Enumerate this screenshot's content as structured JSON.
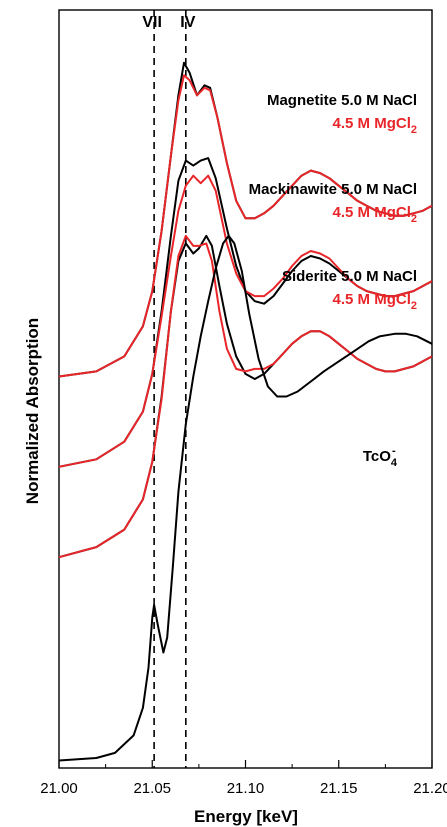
{
  "chart_data": {
    "type": "line",
    "xlabel": "Energy [keV]",
    "ylabel": "Normalized Absorption",
    "xlim": [
      21.0,
      21.2
    ],
    "x_ticks": [
      "21.00",
      "21.05",
      "21.10",
      "21.15",
      "21.20"
    ],
    "y_ticks_shown": false,
    "grid": false,
    "reference_lines": [
      {
        "label": "VII",
        "x": 21.051
      },
      {
        "label": "IV",
        "x": 21.068
      }
    ],
    "colors": {
      "nacl": "#000000",
      "mgcl2": "#e8262a"
    },
    "series": [
      {
        "sample": "Magnetite",
        "labels": {
          "nacl": "Magnetite 5.0 M NaCl",
          "mgcl2_main": "4.5 M MgCl",
          "mgcl2_sub": "2"
        },
        "nacl": [
          [
            21.0,
            1.54
          ],
          [
            21.02,
            1.56
          ],
          [
            21.035,
            1.62
          ],
          [
            21.045,
            1.74
          ],
          [
            21.05,
            1.88
          ],
          [
            21.055,
            2.12
          ],
          [
            21.06,
            2.42
          ],
          [
            21.064,
            2.66
          ],
          [
            21.067,
            2.79
          ],
          [
            21.07,
            2.75
          ],
          [
            21.074,
            2.66
          ],
          [
            21.078,
            2.7
          ],
          [
            21.081,
            2.69
          ],
          [
            21.085,
            2.57
          ],
          [
            21.09,
            2.39
          ],
          [
            21.095,
            2.24
          ],
          [
            21.1,
            2.17
          ],
          [
            21.105,
            2.17
          ],
          [
            21.11,
            2.19
          ],
          [
            21.115,
            2.22
          ],
          [
            21.12,
            2.26
          ],
          [
            21.125,
            2.3
          ],
          [
            21.13,
            2.34
          ],
          [
            21.135,
            2.36
          ],
          [
            21.14,
            2.35
          ],
          [
            21.145,
            2.33
          ],
          [
            21.15,
            2.3
          ],
          [
            21.155,
            2.27
          ],
          [
            21.16,
            2.24
          ],
          [
            21.165,
            2.22
          ],
          [
            21.17,
            2.2
          ],
          [
            21.175,
            2.19
          ],
          [
            21.18,
            2.18
          ],
          [
            21.185,
            2.18
          ],
          [
            21.19,
            2.19
          ],
          [
            21.195,
            2.2
          ],
          [
            21.2,
            2.22
          ]
        ],
        "mgcl2": [
          [
            21.0,
            1.54
          ],
          [
            21.02,
            1.56
          ],
          [
            21.035,
            1.62
          ],
          [
            21.045,
            1.74
          ],
          [
            21.05,
            1.88
          ],
          [
            21.055,
            2.12
          ],
          [
            21.06,
            2.42
          ],
          [
            21.064,
            2.64
          ],
          [
            21.067,
            2.74
          ],
          [
            21.07,
            2.72
          ],
          [
            21.074,
            2.66
          ],
          [
            21.078,
            2.69
          ],
          [
            21.081,
            2.68
          ],
          [
            21.085,
            2.57
          ],
          [
            21.09,
            2.39
          ],
          [
            21.095,
            2.24
          ],
          [
            21.1,
            2.17
          ],
          [
            21.105,
            2.17
          ],
          [
            21.11,
            2.19
          ],
          [
            21.115,
            2.22
          ],
          [
            21.12,
            2.26
          ],
          [
            21.125,
            2.3
          ],
          [
            21.13,
            2.34
          ],
          [
            21.135,
            2.36
          ],
          [
            21.14,
            2.35
          ],
          [
            21.145,
            2.33
          ],
          [
            21.15,
            2.3
          ],
          [
            21.155,
            2.27
          ],
          [
            21.16,
            2.24
          ],
          [
            21.165,
            2.22
          ],
          [
            21.17,
            2.2
          ],
          [
            21.175,
            2.19
          ],
          [
            21.18,
            2.18
          ],
          [
            21.185,
            2.18
          ],
          [
            21.19,
            2.19
          ],
          [
            21.195,
            2.2
          ],
          [
            21.2,
            2.22
          ]
        ]
      },
      {
        "sample": "Mackinawite",
        "labels": {
          "nacl": "Mackinawite 5.0 M NaCl",
          "mgcl2_main": "4.5 M MgCl",
          "mgcl2_sub": "2"
        },
        "nacl": [
          [
            21.0,
            1.18
          ],
          [
            21.02,
            1.21
          ],
          [
            21.035,
            1.28
          ],
          [
            21.045,
            1.4
          ],
          [
            21.05,
            1.55
          ],
          [
            21.055,
            1.8
          ],
          [
            21.06,
            2.1
          ],
          [
            21.064,
            2.32
          ],
          [
            21.068,
            2.4
          ],
          [
            21.072,
            2.38
          ],
          [
            21.076,
            2.4
          ],
          [
            21.08,
            2.41
          ],
          [
            21.084,
            2.33
          ],
          [
            21.09,
            2.13
          ],
          [
            21.095,
            1.98
          ],
          [
            21.1,
            1.88
          ],
          [
            21.105,
            1.84
          ],
          [
            21.11,
            1.83
          ],
          [
            21.115,
            1.86
          ],
          [
            21.12,
            1.91
          ],
          [
            21.125,
            1.96
          ],
          [
            21.13,
            2.0
          ],
          [
            21.135,
            2.02
          ],
          [
            21.14,
            2.01
          ],
          [
            21.145,
            1.99
          ],
          [
            21.15,
            1.96
          ],
          [
            21.155,
            1.93
          ],
          [
            21.16,
            1.9
          ],
          [
            21.165,
            1.88
          ],
          [
            21.17,
            1.87
          ],
          [
            21.175,
            1.86
          ],
          [
            21.18,
            1.86
          ],
          [
            21.185,
            1.87
          ],
          [
            21.19,
            1.88
          ],
          [
            21.195,
            1.9
          ],
          [
            21.2,
            1.92
          ]
        ],
        "mgcl2": [
          [
            21.0,
            1.18
          ],
          [
            21.02,
            1.21
          ],
          [
            21.035,
            1.28
          ],
          [
            21.045,
            1.4
          ],
          [
            21.05,
            1.55
          ],
          [
            21.055,
            1.78
          ],
          [
            21.06,
            2.02
          ],
          [
            21.064,
            2.2
          ],
          [
            21.068,
            2.3
          ],
          [
            21.072,
            2.34
          ],
          [
            21.076,
            2.31
          ],
          [
            21.08,
            2.34
          ],
          [
            21.084,
            2.28
          ],
          [
            21.09,
            2.07
          ],
          [
            21.095,
            1.95
          ],
          [
            21.1,
            1.88
          ],
          [
            21.105,
            1.86
          ],
          [
            21.11,
            1.86
          ],
          [
            21.115,
            1.89
          ],
          [
            21.12,
            1.93
          ],
          [
            21.125,
            1.98
          ],
          [
            21.13,
            2.02
          ],
          [
            21.135,
            2.04
          ],
          [
            21.14,
            2.03
          ],
          [
            21.145,
            2.01
          ],
          [
            21.15,
            1.97
          ],
          [
            21.155,
            1.93
          ],
          [
            21.16,
            1.9
          ],
          [
            21.165,
            1.88
          ],
          [
            21.17,
            1.87
          ],
          [
            21.175,
            1.86
          ],
          [
            21.18,
            1.86
          ],
          [
            21.185,
            1.87
          ],
          [
            21.19,
            1.88
          ],
          [
            21.195,
            1.9
          ],
          [
            21.2,
            1.92
          ]
        ]
      },
      {
        "sample": "Siderite",
        "labels": {
          "nacl": "Siderite 5.0 M NaCl",
          "mgcl2_main": "4.5 M MgCl",
          "mgcl2_sub": "2"
        },
        "nacl": [
          [
            21.0,
            0.82
          ],
          [
            21.02,
            0.86
          ],
          [
            21.035,
            0.93
          ],
          [
            21.045,
            1.05
          ],
          [
            21.05,
            1.2
          ],
          [
            21.055,
            1.46
          ],
          [
            21.06,
            1.8
          ],
          [
            21.064,
            2.0
          ],
          [
            21.068,
            2.07
          ],
          [
            21.072,
            2.03
          ],
          [
            21.075,
            2.05
          ],
          [
            21.079,
            2.1
          ],
          [
            21.082,
            2.06
          ],
          [
            21.086,
            1.9
          ],
          [
            21.09,
            1.75
          ],
          [
            21.095,
            1.62
          ],
          [
            21.1,
            1.55
          ],
          [
            21.105,
            1.53
          ],
          [
            21.11,
            1.55
          ],
          [
            21.115,
            1.59
          ],
          [
            21.12,
            1.63
          ],
          [
            21.125,
            1.67
          ],
          [
            21.13,
            1.7
          ],
          [
            21.135,
            1.72
          ],
          [
            21.14,
            1.72
          ],
          [
            21.145,
            1.7
          ],
          [
            21.15,
            1.67
          ],
          [
            21.155,
            1.64
          ],
          [
            21.16,
            1.61
          ],
          [
            21.165,
            1.59
          ],
          [
            21.17,
            1.57
          ],
          [
            21.175,
            1.56
          ],
          [
            21.18,
            1.56
          ],
          [
            21.185,
            1.57
          ],
          [
            21.19,
            1.58
          ],
          [
            21.195,
            1.6
          ],
          [
            21.2,
            1.62
          ]
        ],
        "mgcl2": [
          [
            21.0,
            0.82
          ],
          [
            21.02,
            0.86
          ],
          [
            21.035,
            0.93
          ],
          [
            21.045,
            1.05
          ],
          [
            21.05,
            1.2
          ],
          [
            21.055,
            1.45
          ],
          [
            21.06,
            1.8
          ],
          [
            21.064,
            2.02
          ],
          [
            21.068,
            2.1
          ],
          [
            21.072,
            2.06
          ],
          [
            21.075,
            2.06
          ],
          [
            21.079,
            2.07
          ],
          [
            21.082,
            2.0
          ],
          [
            21.086,
            1.8
          ],
          [
            21.09,
            1.65
          ],
          [
            21.095,
            1.57
          ],
          [
            21.1,
            1.56
          ],
          [
            21.105,
            1.57
          ],
          [
            21.11,
            1.57
          ],
          [
            21.115,
            1.59
          ],
          [
            21.12,
            1.63
          ],
          [
            21.125,
            1.67
          ],
          [
            21.13,
            1.7
          ],
          [
            21.135,
            1.72
          ],
          [
            21.14,
            1.72
          ],
          [
            21.145,
            1.7
          ],
          [
            21.15,
            1.67
          ],
          [
            21.155,
            1.64
          ],
          [
            21.16,
            1.61
          ],
          [
            21.165,
            1.59
          ],
          [
            21.17,
            1.57
          ],
          [
            21.175,
            1.56
          ],
          [
            21.18,
            1.56
          ],
          [
            21.185,
            1.57
          ],
          [
            21.19,
            1.58
          ],
          [
            21.195,
            1.6
          ],
          [
            21.2,
            1.62
          ]
        ]
      },
      {
        "sample": "TcO4-",
        "labels": {
          "main": "TcO",
          "sub": "4",
          "sup": "-"
        },
        "values": [
          [
            21.0,
            0.01
          ],
          [
            21.02,
            0.02
          ],
          [
            21.03,
            0.04
          ],
          [
            21.04,
            0.11
          ],
          [
            21.045,
            0.22
          ],
          [
            21.048,
            0.38
          ],
          [
            21.05,
            0.58
          ],
          [
            21.051,
            0.63
          ],
          [
            21.053,
            0.55
          ],
          [
            21.056,
            0.44
          ],
          [
            21.058,
            0.5
          ],
          [
            21.061,
            0.78
          ],
          [
            21.064,
            1.08
          ],
          [
            21.068,
            1.35
          ],
          [
            21.072,
            1.54
          ],
          [
            21.076,
            1.7
          ],
          [
            21.08,
            1.84
          ],
          [
            21.084,
            1.97
          ],
          [
            21.088,
            2.07
          ],
          [
            21.091,
            2.1
          ],
          [
            21.094,
            2.07
          ],
          [
            21.098,
            1.96
          ],
          [
            21.102,
            1.79
          ],
          [
            21.107,
            1.61
          ],
          [
            21.112,
            1.5
          ],
          [
            21.117,
            1.46
          ],
          [
            21.122,
            1.46
          ],
          [
            21.128,
            1.48
          ],
          [
            21.135,
            1.52
          ],
          [
            21.142,
            1.56
          ],
          [
            21.15,
            1.6
          ],
          [
            21.158,
            1.64
          ],
          [
            21.166,
            1.68
          ],
          [
            21.172,
            1.7
          ],
          [
            21.18,
            1.71
          ],
          [
            21.186,
            1.71
          ],
          [
            21.192,
            1.7
          ],
          [
            21.2,
            1.67
          ]
        ]
      }
    ]
  }
}
